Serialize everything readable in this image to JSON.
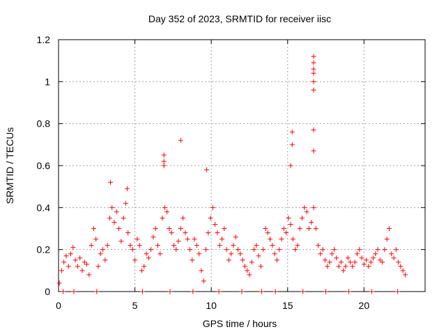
{
  "chart_data": {
    "type": "scatter",
    "title": "Day 352 of 2023, SRMTID for receiver iisc",
    "xlabel": "GPS time / hours",
    "ylabel": "SRMTID / TECUs",
    "xlim": [
      0,
      24
    ],
    "ylim": [
      0,
      1.2
    ],
    "xticks": [
      0,
      5,
      10,
      15,
      20
    ],
    "xtick_labels": [
      "0",
      "5",
      "10",
      "15",
      "20"
    ],
    "yticks": [
      0,
      0.2,
      0.4,
      0.6,
      0.8,
      1,
      1.2
    ],
    "ytick_labels": [
      "0",
      "0.2",
      "0.4",
      "0.6",
      "0.8",
      "1",
      "1.2"
    ],
    "grid": true,
    "marker": "+",
    "series": [
      {
        "name": "SRMTID",
        "color": "#ff0000",
        "x": [
          0.05,
          0.2,
          0.35,
          0.5,
          0.65,
          0.8,
          0.95,
          1.1,
          1.25,
          1.4,
          1.55,
          1.7,
          1.85,
          2.0,
          2.15,
          2.3,
          2.45,
          2.6,
          2.75,
          2.9,
          3.05,
          3.2,
          3.35,
          3.5,
          3.65,
          3.8,
          3.95,
          4.1,
          4.25,
          4.4,
          4.55,
          4.7,
          4.85,
          5.0,
          5.15,
          5.3,
          5.45,
          5.6,
          5.75,
          5.9,
          6.05,
          6.2,
          6.35,
          6.5,
          6.65,
          6.8,
          6.95,
          7.1,
          7.25,
          7.4,
          7.55,
          7.7,
          7.85,
          8.0,
          8.15,
          8.3,
          8.45,
          8.6,
          8.75,
          8.9,
          9.05,
          9.2,
          9.35,
          9.5,
          9.65,
          9.8,
          9.95,
          10.1,
          10.25,
          10.4,
          10.55,
          10.7,
          10.85,
          11.0,
          11.15,
          11.3,
          11.45,
          11.6,
          11.75,
          11.9,
          12.05,
          12.2,
          12.35,
          12.5,
          12.65,
          12.8,
          12.95,
          13.1,
          13.25,
          13.4,
          13.55,
          13.7,
          13.85,
          14.0,
          14.15,
          14.3,
          14.45,
          14.6,
          14.75,
          14.9,
          15.05,
          15.2,
          15.35,
          15.5,
          15.65,
          15.8,
          15.95,
          16.1,
          16.25,
          16.4,
          16.55,
          16.7,
          16.85,
          17.0,
          17.15,
          17.3,
          17.45,
          17.6,
          17.75,
          17.9,
          18.05,
          18.2,
          18.35,
          18.5,
          18.65,
          18.8,
          18.95,
          19.1,
          19.25,
          19.4,
          19.55,
          19.7,
          19.85,
          20.0,
          20.15,
          20.3,
          20.45,
          20.6,
          20.75,
          20.9,
          21.05,
          21.2,
          21.35,
          21.5,
          21.65,
          21.8,
          21.95,
          22.1,
          22.25,
          22.4,
          22.55,
          22.7,
          6.9,
          6.9,
          6.9,
          8.0,
          9.7,
          15.3,
          15.3,
          15.2,
          16.7,
          16.7,
          16.7,
          16.7,
          16.7,
          16.7,
          16.7,
          16.7,
          3.4,
          4.5,
          0.3,
          1.0,
          2.5,
          5.5,
          7.3,
          8.8,
          10.5,
          12.0,
          13.3,
          14.2,
          16.0,
          17.5,
          19.0,
          20.5,
          22.2
        ],
        "y": [
          0.04,
          0.1,
          0.14,
          0.17,
          0.12,
          0.18,
          0.21,
          0.15,
          0.12,
          0.16,
          0.1,
          0.14,
          0.13,
          0.08,
          0.22,
          0.3,
          0.25,
          0.12,
          0.18,
          0.2,
          0.15,
          0.22,
          0.35,
          0.4,
          0.33,
          0.38,
          0.3,
          0.24,
          0.35,
          0.42,
          0.28,
          0.22,
          0.2,
          0.15,
          0.25,
          0.22,
          0.1,
          0.12,
          0.18,
          0.16,
          0.2,
          0.26,
          0.3,
          0.22,
          0.18,
          0.35,
          0.4,
          0.38,
          0.3,
          0.28,
          0.22,
          0.2,
          0.24,
          0.3,
          0.35,
          0.28,
          0.25,
          0.2,
          0.15,
          0.25,
          0.22,
          0.18,
          0.1,
          0.05,
          0.2,
          0.28,
          0.35,
          0.4,
          0.32,
          0.28,
          0.22,
          0.25,
          0.3,
          0.2,
          0.15,
          0.18,
          0.22,
          0.26,
          0.2,
          0.18,
          0.15,
          0.12,
          0.1,
          0.08,
          0.14,
          0.2,
          0.22,
          0.17,
          0.12,
          0.2,
          0.3,
          0.28,
          0.25,
          0.22,
          0.18,
          0.15,
          0.2,
          0.25,
          0.3,
          0.28,
          0.35,
          0.32,
          0.25,
          0.2,
          0.22,
          0.3,
          0.35,
          0.4,
          0.38,
          0.3,
          0.33,
          0.4,
          0.3,
          0.22,
          0.18,
          0.2,
          0.15,
          0.12,
          0.14,
          0.18,
          0.2,
          0.16,
          0.12,
          0.14,
          0.1,
          0.12,
          0.16,
          0.14,
          0.12,
          0.14,
          0.18,
          0.2,
          0.16,
          0.13,
          0.15,
          0.12,
          0.14,
          0.16,
          0.18,
          0.2,
          0.15,
          0.14,
          0.2,
          0.25,
          0.3,
          0.18,
          0.16,
          0.2,
          0.14,
          0.12,
          0.1,
          0.08,
          0.65,
          0.62,
          0.6,
          0.72,
          0.58,
          0.76,
          0.7,
          0.6,
          1.12,
          1.09,
          1.06,
          1.04,
          1.0,
          0.96,
          0.77,
          0.67,
          0.52,
          0.49,
          0.0,
          0.0,
          0.0,
          0.0,
          0.0,
          0.0,
          0.0,
          0.0,
          0.0,
          0.0,
          0.0,
          0.0,
          0.0,
          0.0,
          0.0
        ]
      }
    ]
  }
}
